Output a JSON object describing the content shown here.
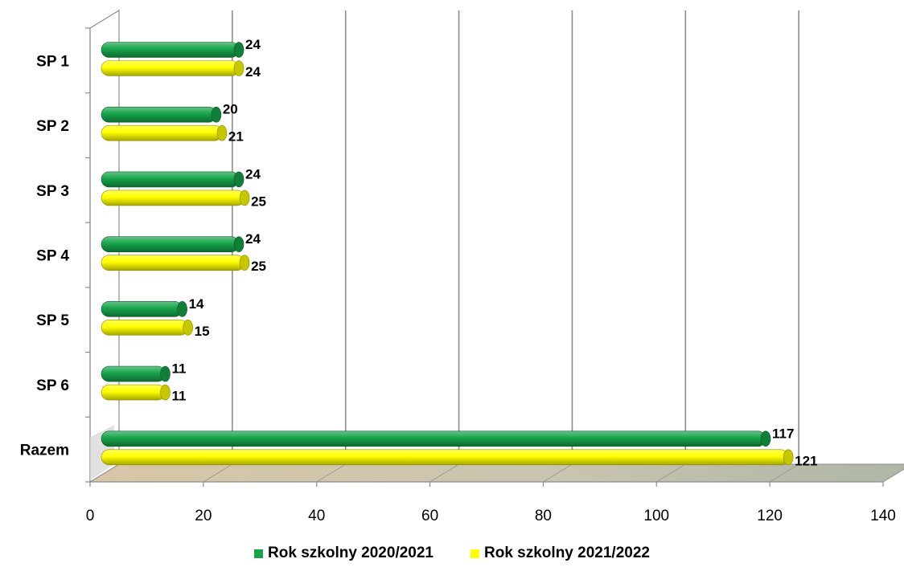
{
  "chart_data": {
    "type": "bar",
    "orientation": "horizontal",
    "categories": [
      "SP 1",
      "SP 2",
      "SP 3",
      "SP 4",
      "SP 5",
      "SP 6",
      "Razem"
    ],
    "series": [
      {
        "name": "Rok szkolny 2020/2021",
        "values": [
          24,
          20,
          24,
          24,
          14,
          11,
          117
        ],
        "color": "#16A34A"
      },
      {
        "name": "Rok szkolny 2021/2022",
        "values": [
          24,
          21,
          25,
          25,
          15,
          11,
          121
        ],
        "color": "#FFFF00"
      }
    ],
    "x_ticks": [
      "0",
      "20",
      "40",
      "60",
      "80",
      "100",
      "120",
      "140"
    ],
    "xlim": [
      0,
      140
    ],
    "grid": true,
    "legend": "bottom",
    "title": "",
    "xlabel": "",
    "ylabel": ""
  }
}
